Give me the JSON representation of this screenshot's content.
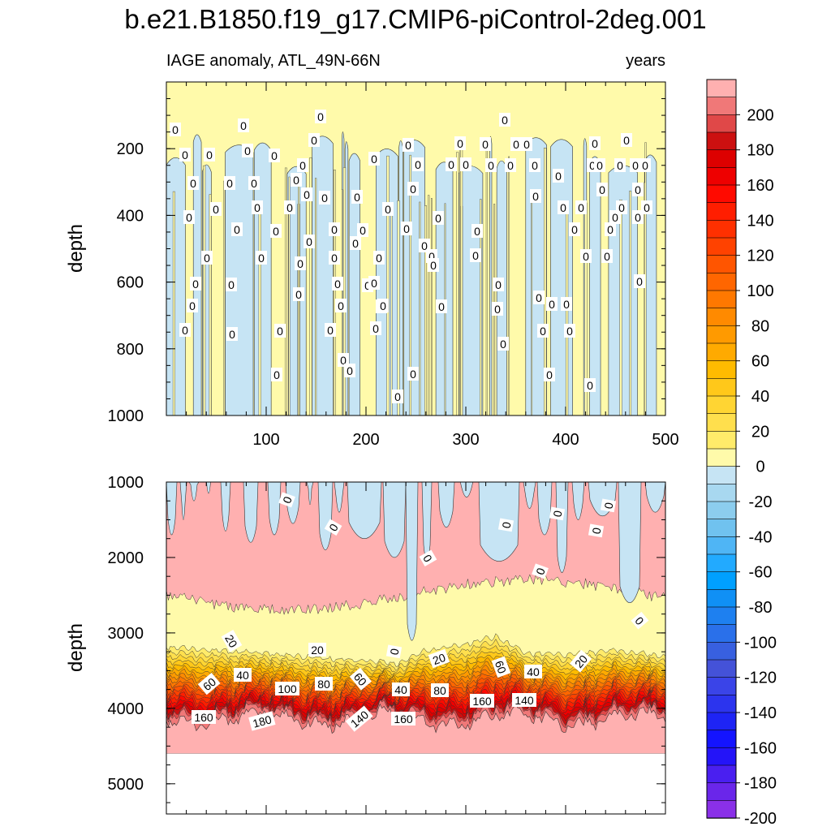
{
  "chart_data": {
    "type": "heatmap",
    "title": "b.e21.B1850.f19_g17.CMIP6-piControl-2deg.001",
    "subtitle_left": "IAGE anomaly, ATL_49N-66N",
    "subtitle_right": "years",
    "xlabel": "",
    "ylabel": "depth",
    "xlim": [
      0,
      500
    ],
    "x_ticks": [
      100,
      200,
      300,
      400,
      500
    ],
    "panels": [
      {
        "name": "upper",
        "ylim": [
          0,
          1000
        ],
        "y_ticks": [
          200,
          400,
          600,
          800,
          1000
        ],
        "contour_labels": [
          "0"
        ]
      },
      {
        "name": "lower",
        "ylim": [
          1000,
          5400
        ],
        "y_ticks": [
          1000,
          2000,
          3000,
          4000,
          5000
        ],
        "ocean_bottom_depth": 4600,
        "mixed_layer_base_depth": 2500,
        "contour_labels": [
          "0",
          "20",
          "40",
          "60",
          "80",
          "100",
          "140",
          "160",
          "180"
        ],
        "positive_layer_top": [
          {
            "x": 0,
            "depth": 3100
          },
          {
            "x": 50,
            "depth": 3150
          },
          {
            "x": 100,
            "depth": 3200
          },
          {
            "x": 150,
            "depth": 3250
          },
          {
            "x": 200,
            "depth": 3300
          },
          {
            "x": 230,
            "depth": 3350
          },
          {
            "x": 260,
            "depth": 3150
          },
          {
            "x": 300,
            "depth": 3050
          },
          {
            "x": 330,
            "depth": 2950
          },
          {
            "x": 360,
            "depth": 3200
          },
          {
            "x": 400,
            "depth": 3200
          },
          {
            "x": 450,
            "depth": 3150
          },
          {
            "x": 500,
            "depth": 3250
          }
        ]
      }
    ],
    "colorbar": {
      "min": -210,
      "max": 210,
      "step": 10,
      "tick_labels": [
        "200",
        "180",
        "160",
        "140",
        "120",
        "100",
        "80",
        "60",
        "40",
        "20",
        "0",
        "-20",
        "-40",
        "-60",
        "-80",
        "-100",
        "-120",
        "-140",
        "-160",
        "-180",
        "-200"
      ]
    }
  }
}
